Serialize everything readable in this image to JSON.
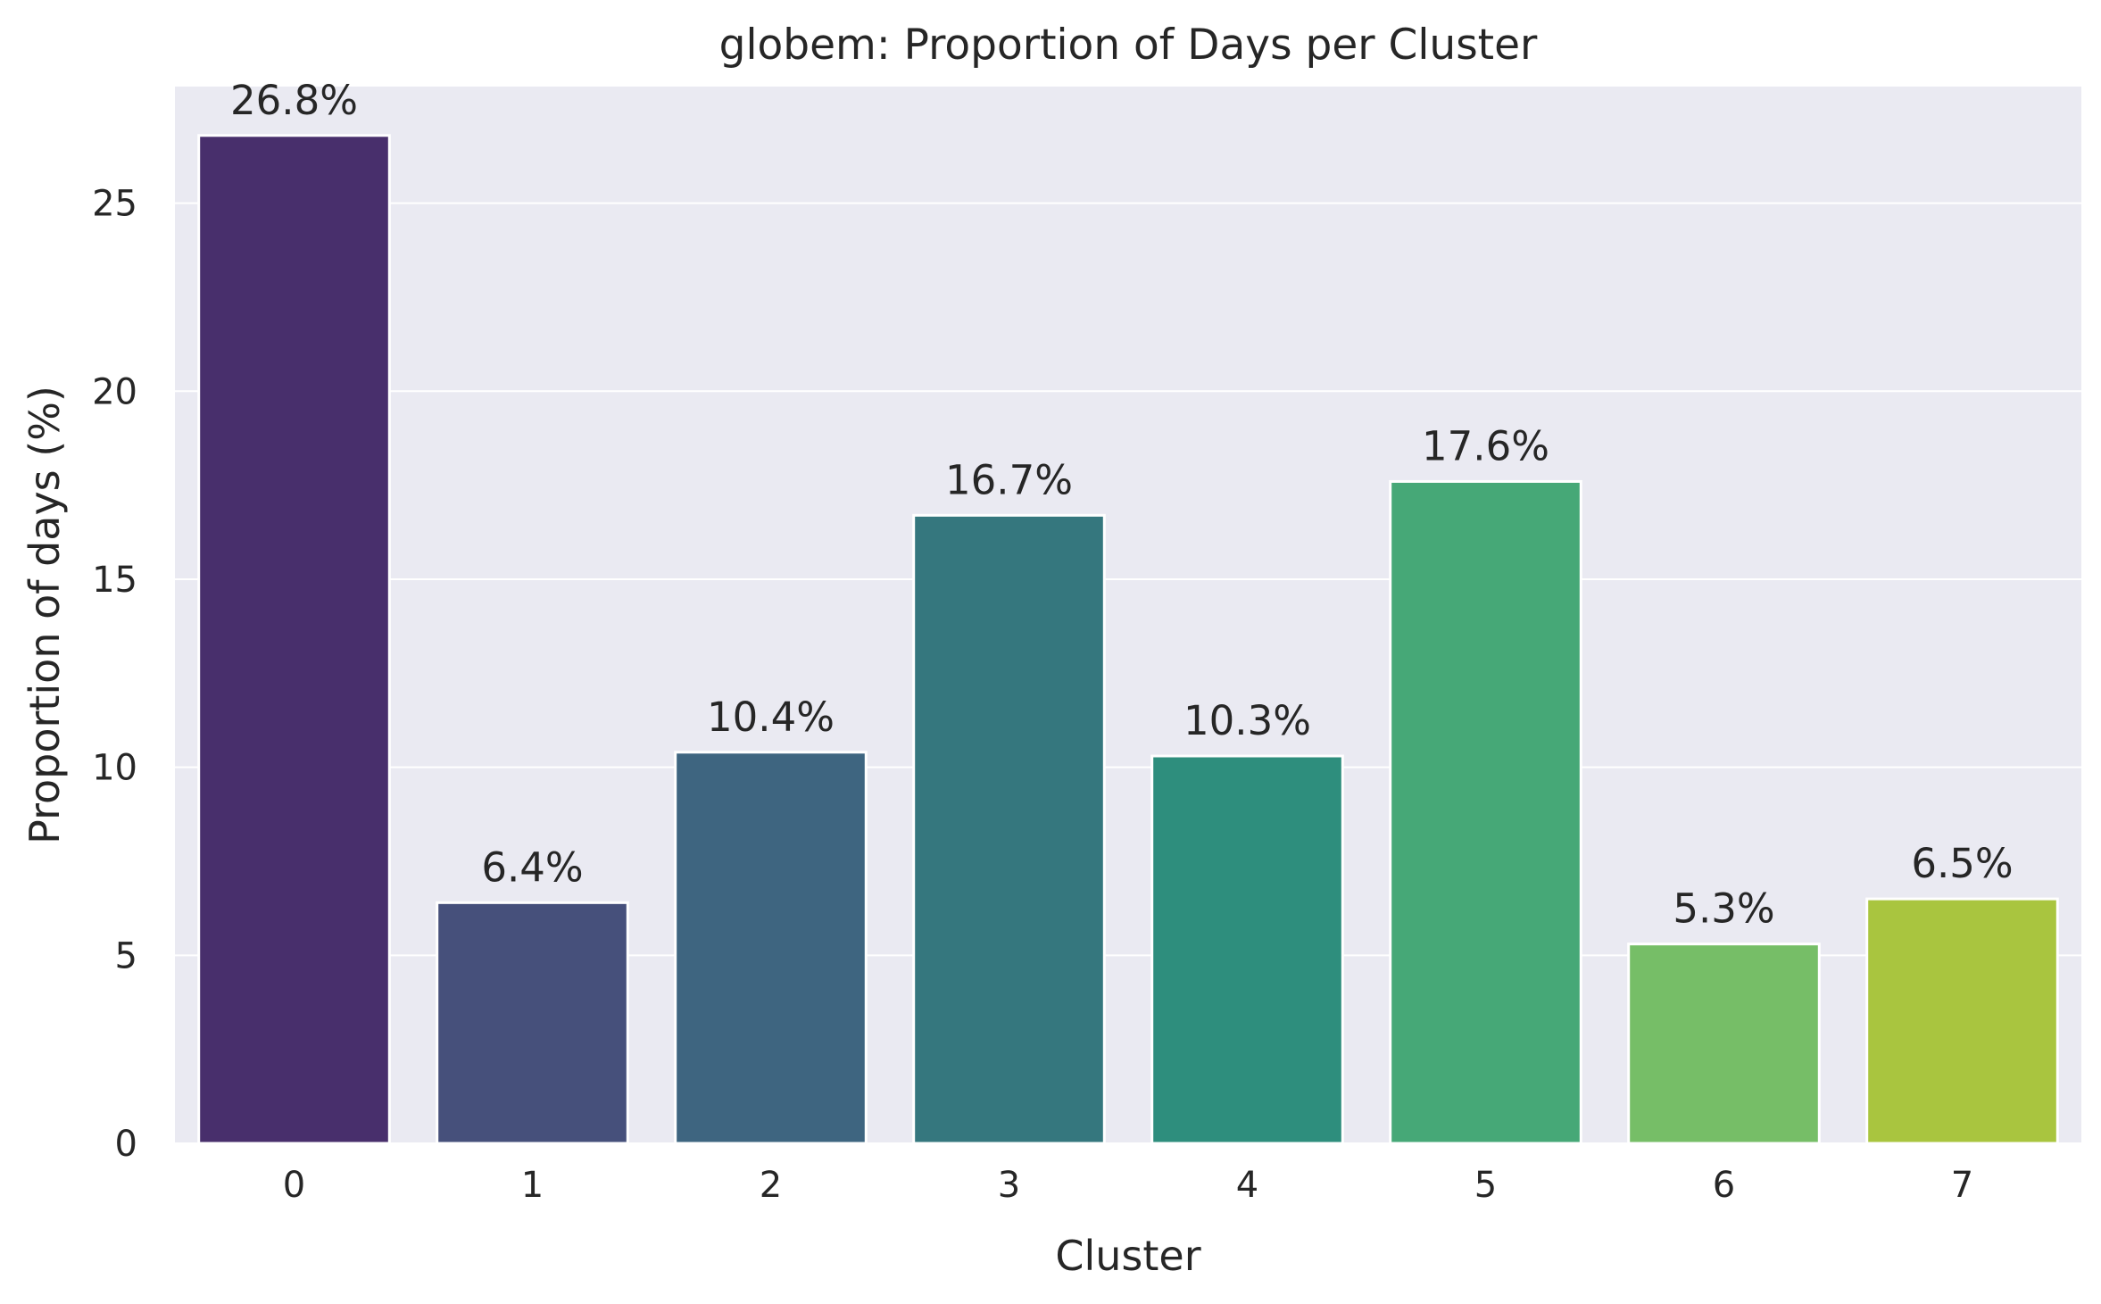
{
  "chart_data": {
    "type": "bar",
    "title": "globem: Proportion of Days per Cluster",
    "xlabel": "Cluster",
    "ylabel": "Proportion of days (%)",
    "categories": [
      "0",
      "1",
      "2",
      "3",
      "4",
      "5",
      "6",
      "7"
    ],
    "values": [
      26.8,
      6.4,
      10.4,
      16.7,
      10.3,
      17.6,
      5.3,
      6.5
    ],
    "data_labels": [
      "26.8%",
      "6.4%",
      "10.4%",
      "16.7%",
      "10.3%",
      "17.6%",
      "5.3%",
      "6.5%"
    ],
    "colors": [
      "#482f6c",
      "#46507b",
      "#3e6580",
      "#35777e",
      "#2e8e7d",
      "#46a877",
      "#76be67",
      "#a9c53f"
    ],
    "yticks": [
      0,
      5,
      10,
      15,
      20,
      25
    ],
    "ylim": [
      0,
      28.1
    ],
    "grid": true,
    "background_color": "#eaeaf2",
    "grid_color": "#ffffff"
  }
}
